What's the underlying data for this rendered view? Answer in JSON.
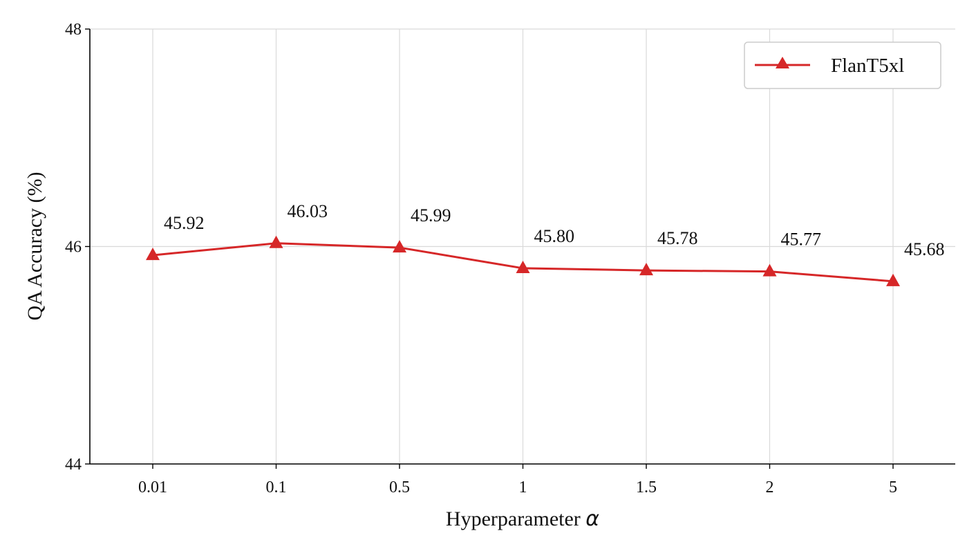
{
  "chart_data": {
    "type": "line",
    "categories": [
      "0.01",
      "0.1",
      "0.5",
      "1",
      "1.5",
      "2",
      "5"
    ],
    "series": [
      {
        "name": "FlanT5xl",
        "values": [
          45.92,
          46.03,
          45.99,
          45.8,
          45.78,
          45.77,
          45.68
        ],
        "data_labels": [
          "45.92",
          "46.03",
          "45.99",
          "45.80",
          "45.78",
          "45.77",
          "45.68"
        ],
        "color": "#d62728",
        "marker": "triangle"
      }
    ],
    "xlabel_text": "Hyperparameter ",
    "xlabel_symbol": "α",
    "ylabel": "QA Accuracy (%)",
    "ylim": [
      44,
      48
    ],
    "yticks": [
      "44",
      "46",
      "48"
    ],
    "grid": true,
    "legend_position": "top-right"
  }
}
